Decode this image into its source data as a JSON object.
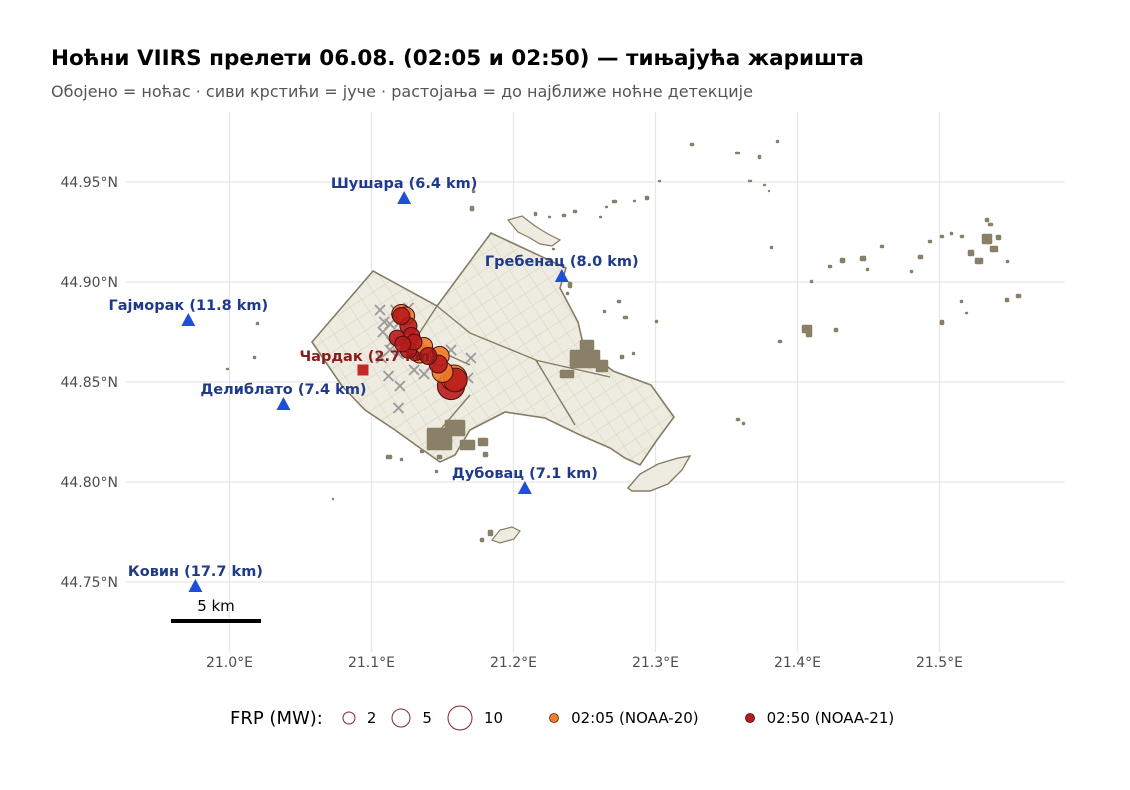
{
  "title": "Ноћни VIIRS прелети 06.08. (02:05 и 02:50) — тињајућа жаришта",
  "subtitle": "Обојено = ноћас · сиви крстићи = јуче · растојања = до најближе ноћне детекције",
  "axes": {
    "x_ticks": [
      "21.0°E",
      "21.1°E",
      "21.2°E",
      "21.3°E",
      "21.4°E",
      "21.5°E"
    ],
    "y_ticks": [
      "44.95°N",
      "44.90°N",
      "44.85°N",
      "44.80°N",
      "44.75°N"
    ]
  },
  "colors": {
    "land_fill": "#eeebe0",
    "land_stroke": "#857c65",
    "grid": "#e6e6e6",
    "pass_0205": "#f07d2a",
    "pass_0250": "#b71c1c",
    "town_marker": "#1f4fd6",
    "hq_marker": "#c62828",
    "yesterday_cross": "#9a9a9a"
  },
  "towns": [
    {
      "label": "Шушара (6.4 km)",
      "lon": 21.123,
      "lat": 44.942
    },
    {
      "label": "Гребенац (8.0 km)",
      "lon": 21.234,
      "lat": 44.903
    },
    {
      "label": "Гаjморак (11.8 km)",
      "lon": 20.971,
      "lat": 44.881
    },
    {
      "label": "Делиблато (7.4 km)",
      "lon": 21.038,
      "lat": 44.839
    },
    {
      "label": "Дубовац (7.1 km)",
      "lon": 21.208,
      "lat": 44.797
    },
    {
      "label": "Ковин (17.7 km)",
      "lon": 20.976,
      "lat": 44.748
    }
  ],
  "hq": {
    "label": "Чардак (2.7 km)",
    "lon": 21.094,
    "lat": 44.856
  },
  "scale_bar": {
    "label": "5 km"
  },
  "legend": {
    "frp_title": "FRP (MW):",
    "frp_sizes": [
      {
        "label": "2",
        "value": 2
      },
      {
        "label": "5",
        "value": 5
      },
      {
        "label": "10",
        "value": 10
      }
    ],
    "passes": [
      {
        "label": "02:05 (NOAA-20)",
        "color": "#f07d2a"
      },
      {
        "label": "02:50 (NOAA-21)",
        "color": "#b71c1c"
      }
    ]
  },
  "detections_night": [
    {
      "lon": 21.121,
      "lat": 44.884,
      "frp": 3,
      "pass": "02:05"
    },
    {
      "lon": 21.124,
      "lat": 44.883,
      "frp": 2.5,
      "pass": "02:05"
    },
    {
      "lon": 21.126,
      "lat": 44.878,
      "frp": 2,
      "pass": "02:50"
    },
    {
      "lon": 21.128,
      "lat": 44.873,
      "frp": 2,
      "pass": "02:50"
    },
    {
      "lon": 21.13,
      "lat": 44.87,
      "frp": 1.5,
      "pass": "02:50"
    },
    {
      "lon": 21.118,
      "lat": 44.872,
      "frp": 1.5,
      "pass": "02:50"
    },
    {
      "lon": 21.122,
      "lat": 44.869,
      "frp": 1.5,
      "pass": "02:50"
    },
    {
      "lon": 21.126,
      "lat": 44.866,
      "frp": 1.8,
      "pass": "02:50"
    },
    {
      "lon": 21.131,
      "lat": 44.865,
      "frp": 2,
      "pass": "02:50"
    },
    {
      "lon": 21.137,
      "lat": 44.868,
      "frp": 2,
      "pass": "02:05"
    },
    {
      "lon": 21.134,
      "lat": 44.864,
      "frp": 2.5,
      "pass": "02:05"
    },
    {
      "lon": 21.14,
      "lat": 44.863,
      "frp": 2,
      "pass": "02:50"
    },
    {
      "lon": 21.148,
      "lat": 44.863,
      "frp": 3,
      "pass": "02:05"
    },
    {
      "lon": 21.147,
      "lat": 44.859,
      "frp": 2.5,
      "pass": "02:50"
    },
    {
      "lon": 21.15,
      "lat": 44.855,
      "frp": 4,
      "pass": "02:05"
    },
    {
      "lon": 21.158,
      "lat": 44.852,
      "frp": 8,
      "pass": "02:05"
    },
    {
      "lon": 21.156,
      "lat": 44.848,
      "frp": 9,
      "pass": "02:50"
    },
    {
      "lon": 21.159,
      "lat": 44.851,
      "frp": 6,
      "pass": "02:50"
    },
    {
      "lon": 21.121,
      "lat": 44.883,
      "frp": 2,
      "pass": "02:50"
    }
  ],
  "detections_yesterday": [
    {
      "lon": 21.106,
      "lat": 44.886
    },
    {
      "lon": 21.117,
      "lat": 44.886
    },
    {
      "lon": 21.126,
      "lat": 44.887
    },
    {
      "lon": 21.109,
      "lat": 44.88
    },
    {
      "lon": 21.113,
      "lat": 44.879
    },
    {
      "lon": 21.12,
      "lat": 44.88
    },
    {
      "lon": 21.108,
      "lat": 44.875
    },
    {
      "lon": 21.114,
      "lat": 44.87
    },
    {
      "lon": 21.12,
      "lat": 44.871
    },
    {
      "lon": 21.107,
      "lat": 44.862
    },
    {
      "lon": 21.113,
      "lat": 44.866
    },
    {
      "lon": 21.119,
      "lat": 44.864
    },
    {
      "lon": 21.112,
      "lat": 44.853
    },
    {
      "lon": 21.12,
      "lat": 44.848
    },
    {
      "lon": 21.13,
      "lat": 44.856
    },
    {
      "lon": 21.137,
      "lat": 44.854
    },
    {
      "lon": 21.142,
      "lat": 44.858
    },
    {
      "lon": 21.156,
      "lat": 44.866
    },
    {
      "lon": 21.17,
      "lat": 44.862
    },
    {
      "lon": 21.168,
      "lat": 44.852
    },
    {
      "lon": 21.119,
      "lat": 44.837
    },
    {
      "lon": 21.133,
      "lat": 44.866
    }
  ]
}
